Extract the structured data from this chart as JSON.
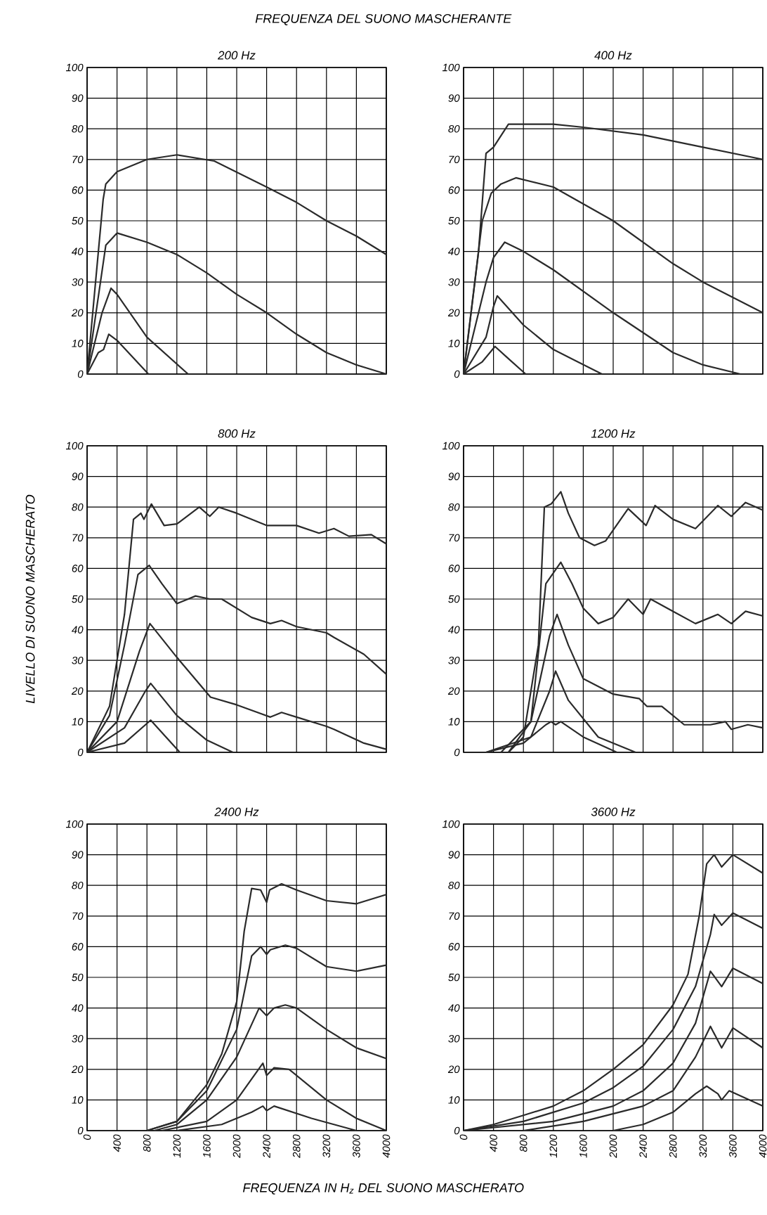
{
  "chart_data": [
    {
      "type": "line",
      "title": "200 Hz",
      "annotations": [
        "FREQUENZA DEL SUONO MASCHERANTE"
      ],
      "xlim": [
        0,
        4000
      ],
      "xticks": [
        0,
        400,
        800,
        1200,
        1600,
        2000,
        2400,
        2800,
        3200,
        3600,
        4000
      ],
      "ylim": [
        0,
        100
      ],
      "yticks": [
        0,
        10,
        20,
        30,
        40,
        50,
        60,
        70,
        80,
        90,
        100
      ],
      "grid": true,
      "tick_labels": "y",
      "series": [
        {
          "color": "#2a2a2a",
          "x": [
            0,
            215,
            250,
            400,
            800,
            1200,
            1700,
            2400,
            2800,
            3200,
            3600,
            4000
          ],
          "values": [
            0,
            57,
            62,
            66,
            70,
            71.5,
            69.5,
            61,
            56,
            50,
            45,
            39
          ]
        },
        {
          "color": "#2a2a2a",
          "x": [
            0,
            250,
            400,
            800,
            1200,
            1600,
            2000,
            2400,
            2800,
            3200,
            3600,
            4000
          ],
          "values": [
            0,
            42,
            46,
            43,
            39,
            33,
            26,
            20,
            13,
            7,
            3,
            0
          ]
        },
        {
          "color": "#2a2a2a",
          "x": [
            0,
            200,
            320,
            400,
            800,
            1350
          ],
          "values": [
            0,
            20,
            28,
            26,
            12,
            0
          ]
        },
        {
          "color": "#2a2a2a",
          "x": [
            0,
            150,
            220,
            290,
            400,
            820
          ],
          "values": [
            0,
            7,
            8,
            13,
            11,
            0
          ]
        }
      ]
    },
    {
      "type": "line",
      "title": "400 Hz",
      "xlim": [
        0,
        4000
      ],
      "xticks": [
        0,
        400,
        800,
        1200,
        1600,
        2000,
        2400,
        2800,
        3200,
        3600,
        4000
      ],
      "ylim": [
        0,
        100
      ],
      "yticks": [
        0,
        10,
        20,
        30,
        40,
        50,
        60,
        70,
        80,
        90,
        100
      ],
      "grid": true,
      "tick_labels": "y",
      "series": [
        {
          "color": "#2a2a2a",
          "x": [
            0,
            200,
            300,
            400,
            600,
            1200,
            1600,
            2400,
            3200,
            4000
          ],
          "values": [
            0,
            40,
            72,
            74,
            81.5,
            81.5,
            80.5,
            78,
            74,
            70
          ]
        },
        {
          "color": "#2a2a2a",
          "x": [
            0,
            250,
            370,
            500,
            700,
            1200,
            2000,
            2800,
            3200,
            4000
          ],
          "values": [
            0,
            50,
            59,
            62,
            64,
            61,
            50,
            36,
            30,
            20
          ]
        },
        {
          "color": "#2a2a2a",
          "x": [
            0,
            300,
            400,
            550,
            800,
            1200,
            2000,
            2800,
            3200,
            3700
          ],
          "values": [
            0,
            30,
            38,
            43,
            40,
            34,
            20,
            7,
            3,
            0
          ]
        },
        {
          "color": "#2a2a2a",
          "x": [
            0,
            300,
            400,
            450,
            800,
            1200,
            1850
          ],
          "values": [
            0,
            12,
            22,
            25.5,
            16,
            8,
            0
          ]
        },
        {
          "color": "#2a2a2a",
          "x": [
            0,
            250,
            420,
            600,
            830
          ],
          "values": [
            0,
            4,
            9,
            5,
            0
          ]
        }
      ]
    },
    {
      "type": "line",
      "title": "800 Hz",
      "ylabel": "LIVELLO DI SUONO MASCHERATO",
      "xlim": [
        0,
        4000
      ],
      "xticks": [
        0,
        400,
        800,
        1200,
        1600,
        2000,
        2400,
        2800,
        3200,
        3600,
        4000
      ],
      "ylim": [
        0,
        100
      ],
      "yticks": [
        0,
        10,
        20,
        30,
        40,
        50,
        60,
        70,
        80,
        90,
        100
      ],
      "grid": true,
      "tick_labels": "y",
      "series": [
        {
          "color": "#2a2a2a",
          "x": [
            0,
            300,
            500,
            620,
            720,
            760,
            860,
            1030,
            1200,
            1500,
            1640,
            1760,
            2000,
            2400,
            2800,
            3100,
            3300,
            3500,
            3800,
            4000
          ],
          "values": [
            0,
            15,
            45,
            76,
            78,
            76,
            81,
            74,
            74.5,
            80,
            77,
            80,
            78,
            74,
            74,
            71.5,
            73,
            70.5,
            71,
            68
          ]
        },
        {
          "color": "#2a2a2a",
          "x": [
            0,
            300,
            500,
            680,
            830,
            1000,
            1200,
            1450,
            1640,
            1800,
            2200,
            2450,
            2600,
            2800,
            3200,
            3300,
            3700,
            4000
          ],
          "values": [
            0,
            12,
            35,
            58,
            61,
            55,
            48.5,
            51,
            50,
            50,
            44,
            42,
            43,
            41,
            39,
            37.5,
            32,
            25.5
          ]
        },
        {
          "color": "#2a2a2a",
          "x": [
            0,
            400,
            700,
            840,
            1200,
            1650,
            2000,
            2450,
            2600,
            2800,
            3200,
            3300,
            3700,
            4000
          ],
          "values": [
            0,
            10,
            33,
            42,
            31,
            18,
            15.5,
            11.5,
            13,
            11.5,
            8.5,
            7.5,
            3,
            1
          ]
        },
        {
          "color": "#2a2a2a",
          "x": [
            0,
            500,
            780,
            850,
            1200,
            1600,
            1950
          ],
          "values": [
            0,
            8,
            20,
            22.5,
            12,
            4,
            0
          ]
        },
        {
          "color": "#2a2a2a",
          "x": [
            0,
            500,
            850,
            1240
          ],
          "values": [
            0,
            3,
            10.5,
            0
          ]
        }
      ]
    },
    {
      "type": "line",
      "title": "1200 Hz",
      "xlim": [
        0,
        4000
      ],
      "xticks": [
        0,
        400,
        800,
        1200,
        1600,
        2000,
        2400,
        2800,
        3200,
        3600,
        4000
      ],
      "ylim": [
        0,
        100
      ],
      "yticks": [
        0,
        10,
        20,
        30,
        40,
        50,
        60,
        70,
        80,
        90,
        100
      ],
      "grid": true,
      "tick_labels": "y",
      "series": [
        {
          "color": "#2a2a2a",
          "x": [
            600,
            800,
            1000,
            1080,
            1170,
            1300,
            1400,
            1550,
            1750,
            1900,
            2200,
            2440,
            2560,
            2800,
            3100,
            3400,
            3580,
            3770,
            4000
          ],
          "values": [
            0,
            5,
            35,
            80,
            81,
            85,
            78,
            70,
            67.5,
            69,
            79.5,
            74,
            80.5,
            76,
            73,
            80.5,
            77,
            81.5,
            79
          ]
        },
        {
          "color": "#2a2a2a",
          "x": [
            600,
            900,
            1100,
            1300,
            1450,
            1600,
            1800,
            2000,
            2200,
            2400,
            2500,
            2800,
            3100,
            3400,
            3580,
            3770,
            4000
          ],
          "values": [
            0,
            10,
            55,
            62,
            55,
            47,
            42,
            44,
            50,
            45,
            50,
            46,
            42,
            45,
            42,
            46,
            44.5
          ]
        },
        {
          "color": "#2a2a2a",
          "x": [
            500,
            900,
            1150,
            1250,
            1400,
            1600,
            2000,
            2350,
            2450,
            2650,
            2950,
            3300,
            3500,
            3580,
            3800,
            4000
          ],
          "values": [
            0,
            10,
            38,
            45,
            35,
            24,
            19,
            17.5,
            15,
            15,
            9,
            9,
            10,
            7.5,
            9,
            8
          ]
        },
        {
          "color": "#2a2a2a",
          "x": [
            300,
            900,
            1150,
            1230,
            1400,
            1800,
            2300
          ],
          "values": [
            0,
            5,
            20,
            26.5,
            17,
            5,
            0
          ]
        },
        {
          "color": "#2a2a2a",
          "x": [
            300,
            800,
            1100,
            1170,
            1230,
            1300,
            1600,
            2050
          ],
          "values": [
            0,
            3,
            9,
            10,
            9,
            10,
            5,
            0
          ]
        }
      ]
    },
    {
      "type": "line",
      "title": "2400 Hz",
      "xlabel": "FREQUENZA IN H$_{z}$ DEL SUONO MASCHERATO",
      "xlim": [
        0,
        4000
      ],
      "xticks": [
        0,
        400,
        800,
        1200,
        1600,
        2000,
        2400,
        2800,
        3200,
        3600,
        4000
      ],
      "ylim": [
        0,
        100
      ],
      "yticks": [
        0,
        10,
        20,
        30,
        40,
        50,
        60,
        70,
        80,
        90,
        100
      ],
      "grid": true,
      "series": [
        {
          "color": "#2a2a2a",
          "x": [
            800,
            1200,
            1600,
            1800,
            2000,
            2100,
            2200,
            2320,
            2400,
            2440,
            2600,
            2800,
            3200,
            3600,
            4000
          ],
          "values": [
            0,
            3,
            15,
            25,
            42,
            65,
            79,
            78.5,
            74.5,
            78.5,
            80.5,
            78.5,
            75,
            74,
            77
          ]
        },
        {
          "color": "#2a2a2a",
          "x": [
            800,
            1200,
            1600,
            2000,
            2200,
            2320,
            2400,
            2450,
            2650,
            2800,
            3200,
            3600,
            4000
          ],
          "values": [
            0,
            3,
            13,
            33,
            57,
            60,
            57.5,
            59,
            60.5,
            59.5,
            53.5,
            52,
            54
          ]
        },
        {
          "color": "#2a2a2a",
          "x": [
            900,
            1200,
            1600,
            2000,
            2300,
            2400,
            2500,
            2650,
            2800,
            3200,
            3600,
            4000
          ],
          "values": [
            0,
            2,
            10,
            24,
            40,
            37.5,
            40,
            41,
            40,
            33,
            27,
            23.5
          ]
        },
        {
          "color": "#2a2a2a",
          "x": [
            1000,
            1600,
            2000,
            2350,
            2400,
            2500,
            2700,
            3200,
            3600,
            4000
          ],
          "values": [
            0,
            3,
            10,
            22,
            18,
            20.5,
            20,
            10,
            4,
            0
          ]
        },
        {
          "color": "#2a2a2a",
          "x": [
            1200,
            1800,
            2200,
            2350,
            2400,
            2500,
            3000,
            3600
          ],
          "values": [
            0,
            2,
            6,
            8,
            6.5,
            8,
            4,
            0
          ]
        }
      ]
    },
    {
      "type": "line",
      "title": "3600 Hz",
      "xlim": [
        0,
        4000
      ],
      "xticks": [
        0,
        400,
        800,
        1200,
        1600,
        2000,
        2400,
        2800,
        3200,
        3600,
        4000
      ],
      "ylim": [
        0,
        100
      ],
      "yticks": [
        0,
        10,
        20,
        30,
        40,
        50,
        60,
        70,
        80,
        90,
        100
      ],
      "grid": true,
      "series": [
        {
          "color": "#2a2a2a",
          "x": [
            0,
            400,
            800,
            1200,
            1600,
            2000,
            2400,
            2800,
            3000,
            3150,
            3250,
            3350,
            3450,
            3600,
            4000
          ],
          "values": [
            0,
            2,
            5,
            8,
            13,
            20,
            28,
            41,
            51,
            70,
            87,
            90,
            86,
            90,
            84
          ]
        },
        {
          "color": "#2a2a2a",
          "x": [
            0,
            800,
            1600,
            2000,
            2400,
            2800,
            3100,
            3300,
            3350,
            3450,
            3600,
            4000
          ],
          "values": [
            0,
            3,
            9,
            14,
            21,
            33,
            47,
            64,
            70.5,
            67,
            71,
            66
          ]
        },
        {
          "color": "#2a2a2a",
          "x": [
            0,
            1200,
            2000,
            2400,
            2800,
            3100,
            3300,
            3450,
            3600,
            4000
          ],
          "values": [
            0,
            3,
            8,
            13,
            22,
            35,
            52,
            47,
            53,
            48
          ]
        },
        {
          "color": "#2a2a2a",
          "x": [
            800,
            1600,
            2400,
            2800,
            3100,
            3300,
            3450,
            3600,
            4000
          ],
          "values": [
            0,
            3,
            8,
            13,
            24,
            34,
            27,
            33.5,
            27
          ]
        },
        {
          "color": "#2a2a2a",
          "x": [
            2000,
            2400,
            2800,
            3100,
            3250,
            3400,
            3450,
            3550,
            4000
          ],
          "values": [
            0,
            2,
            6,
            12,
            14.5,
            12,
            10,
            13,
            8
          ]
        }
      ]
    }
  ]
}
